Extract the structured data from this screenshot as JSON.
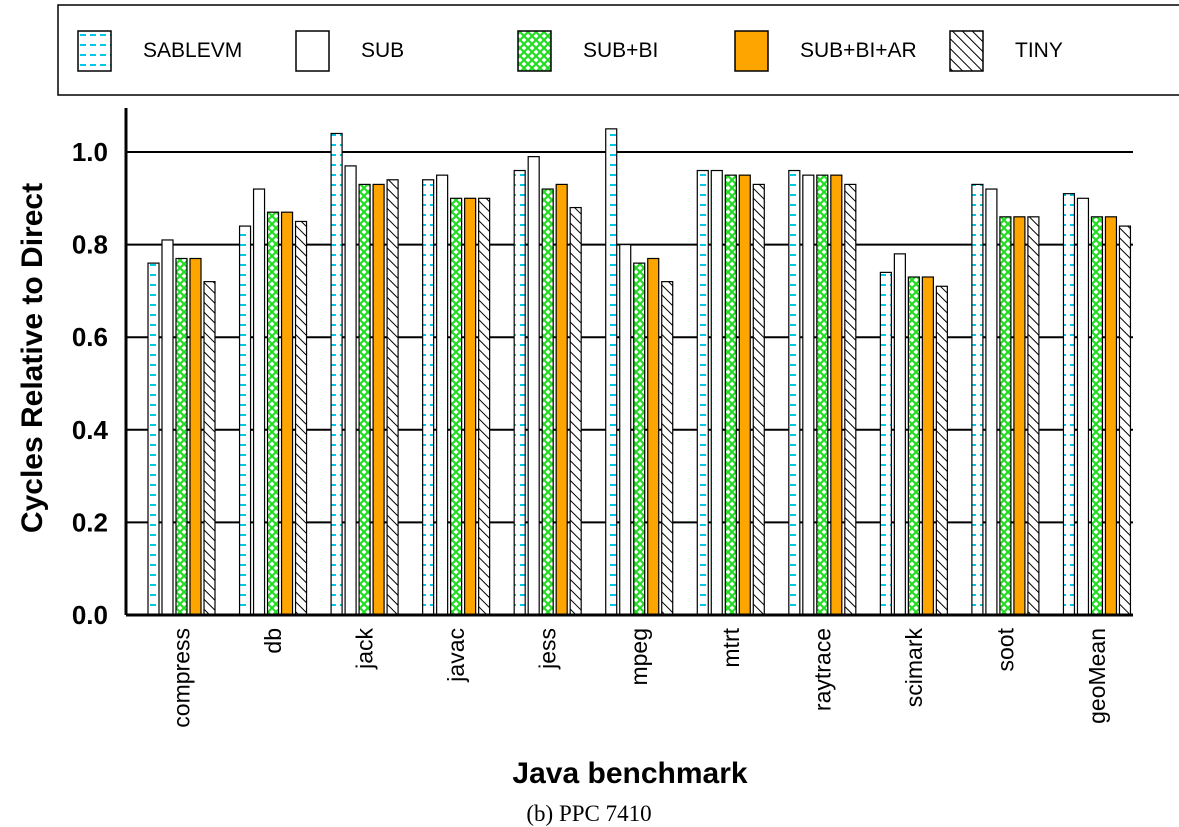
{
  "chart_data": {
    "type": "bar",
    "title": "",
    "caption": "(b) PPC 7410",
    "xlabel": "Java benchmark",
    "ylabel": "Cycles Relative to Direct",
    "ylim": [
      0,
      1.1
    ],
    "yticks": [
      "0.0",
      "0.2",
      "0.4",
      "0.6",
      "0.8",
      "1.0"
    ],
    "grid": true,
    "legend_position": "top",
    "categories": [
      "compress",
      "db",
      "jack",
      "javac",
      "jess",
      "mpeg",
      "mtrt",
      "raytrace",
      "scimark",
      "soot",
      "geoMean"
    ],
    "series": [
      {
        "name": "SABLEVM",
        "pattern": "cyan-dashed-horizontal",
        "color": "#00c8e6",
        "values": [
          0.76,
          0.84,
          1.04,
          0.94,
          0.96,
          1.05,
          0.96,
          0.96,
          0.74,
          0.93,
          0.91
        ]
      },
      {
        "name": "SUB",
        "pattern": "solid",
        "color": "#ffffff",
        "values": [
          0.81,
          0.92,
          0.97,
          0.95,
          0.99,
          0.8,
          0.96,
          0.95,
          0.78,
          0.92,
          0.9
        ]
      },
      {
        "name": "SUB+BI",
        "pattern": "green-crosshatch",
        "color": "#33dd33",
        "values": [
          0.77,
          0.87,
          0.93,
          0.9,
          0.92,
          0.76,
          0.95,
          0.95,
          0.73,
          0.86,
          0.86
        ]
      },
      {
        "name": "SUB+BI+AR",
        "pattern": "solid",
        "color": "#ffa500",
        "values": [
          0.77,
          0.87,
          0.93,
          0.9,
          0.93,
          0.77,
          0.95,
          0.95,
          0.73,
          0.86,
          0.86
        ]
      },
      {
        "name": "TINY",
        "pattern": "diagonal-hatch",
        "color": "#000000",
        "values": [
          0.72,
          0.85,
          0.94,
          0.9,
          0.88,
          0.72,
          0.93,
          0.93,
          0.71,
          0.86,
          0.84
        ]
      }
    ]
  }
}
